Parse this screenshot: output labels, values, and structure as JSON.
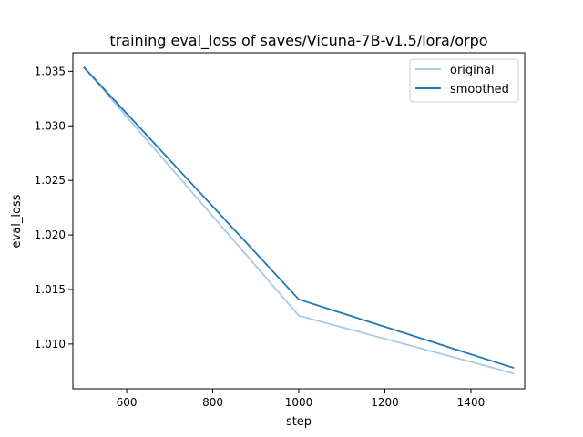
{
  "chart_data": {
    "type": "line",
    "title": "training eval_loss of saves/Vicuna-7B-v1.5/lora/orpo",
    "xlabel": "step",
    "ylabel": "eval_loss",
    "xlim": [
      475,
      1525
    ],
    "ylim": [
      1.0059,
      1.0367
    ],
    "xticks": [
      600,
      800,
      1000,
      1200,
      1400
    ],
    "yticks": [
      1.01,
      1.015,
      1.02,
      1.025,
      1.03,
      1.035
    ],
    "xtick_labels": [
      "600",
      "800",
      "1000",
      "1200",
      "1400"
    ],
    "ytick_labels": [
      "1.010",
      "1.015",
      "1.020",
      "1.025",
      "1.030",
      "1.035"
    ],
    "legend_position": "top-right",
    "grid": false,
    "series": [
      {
        "name": "original",
        "color": "#a6cbe3",
        "x": [
          500,
          1000,
          1500
        ],
        "y": [
          1.0354,
          1.0126,
          1.0073
        ]
      },
      {
        "name": "smoothed",
        "color": "#1f77b4",
        "x": [
          500,
          1000,
          1500
        ],
        "y": [
          1.0354,
          1.0141,
          1.0078
        ]
      }
    ]
  }
}
